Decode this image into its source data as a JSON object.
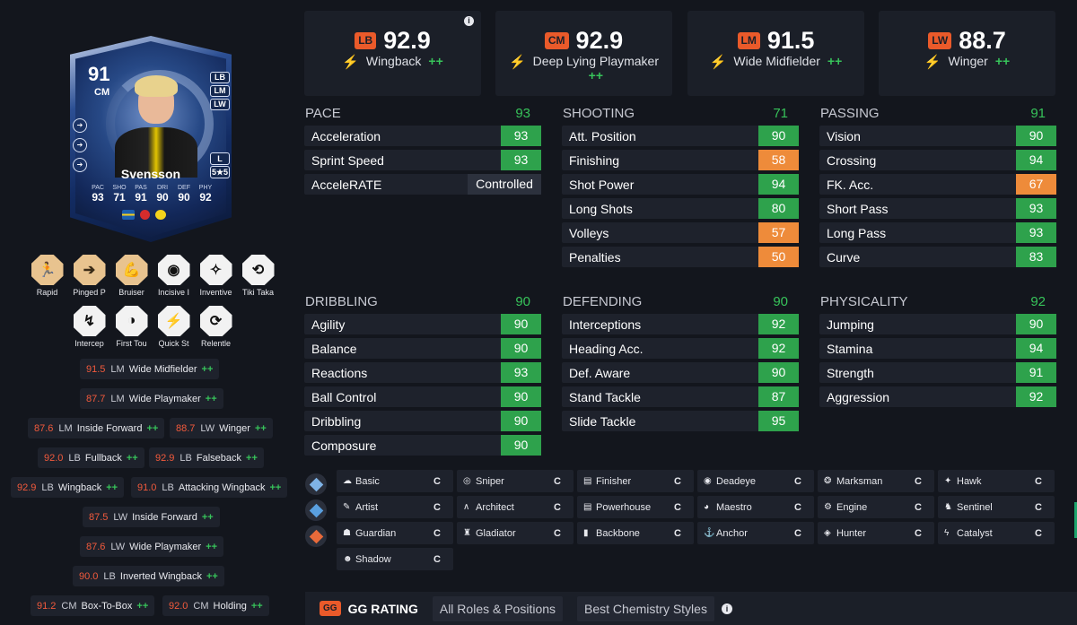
{
  "card": {
    "rating": "91",
    "position": "CM",
    "alt_positions": [
      "LB",
      "LM",
      "LW"
    ],
    "foot": "L",
    "skill_weak": "5★5",
    "name": "Svensson",
    "stats": [
      {
        "k": "PAC",
        "v": "93"
      },
      {
        "k": "SHO",
        "v": "71"
      },
      {
        "k": "PAS",
        "v": "91"
      },
      {
        "k": "DRI",
        "v": "90"
      },
      {
        "k": "DEF",
        "v": "90"
      },
      {
        "k": "PHY",
        "v": "92"
      }
    ],
    "colors": {
      "card_blue": "#274986",
      "accent": "#e8d28d"
    }
  },
  "playstyles": [
    {
      "label": "Rapid",
      "icon": "rapid-icon",
      "glyph": "🏃",
      "style": "gold"
    },
    {
      "label": "Pinged P",
      "icon": "pinged-pass-icon",
      "glyph": "➔",
      "style": "gold"
    },
    {
      "label": "Bruiser",
      "icon": "bruiser-icon",
      "glyph": "💪",
      "style": "gold"
    },
    {
      "label": "Incisive I",
      "icon": "incisive-pass-icon",
      "glyph": "◉",
      "style": "white"
    },
    {
      "label": "Inventive",
      "icon": "inventive-icon",
      "glyph": "✧",
      "style": "white"
    },
    {
      "label": "Tiki Taka",
      "icon": "tiki-taka-icon",
      "glyph": "⟲",
      "style": "white"
    },
    {
      "label": "Intercep",
      "icon": "intercept-icon",
      "glyph": "↯",
      "style": "white"
    },
    {
      "label": "First Tou",
      "icon": "first-touch-icon",
      "glyph": "◑",
      "style": "white"
    },
    {
      "label": "Quick St",
      "icon": "quick-step-icon",
      "glyph": "⚡",
      "style": "white"
    },
    {
      "label": "Relentle",
      "icon": "relentless-icon",
      "glyph": "⟳",
      "style": "white"
    }
  ],
  "role_pills": [
    {
      "rating": "91.5",
      "pos": "LM",
      "name": "Wide Midfielder",
      "plus": "++"
    },
    {
      "rating": "87.7",
      "pos": "LM",
      "name": "Wide Playmaker",
      "plus": "++"
    },
    {
      "rating": "87.6",
      "pos": "LM",
      "name": "Inside Forward",
      "plus": "++"
    },
    {
      "rating": "88.7",
      "pos": "LW",
      "name": "Winger",
      "plus": "++"
    },
    {
      "rating": "92.0",
      "pos": "LB",
      "name": "Fullback",
      "plus": "++"
    },
    {
      "rating": "92.9",
      "pos": "LB",
      "name": "Falseback",
      "plus": "++"
    },
    {
      "rating": "92.9",
      "pos": "LB",
      "name": "Wingback",
      "plus": "++"
    },
    {
      "rating": "91.0",
      "pos": "LB",
      "name": "Attacking Wingback",
      "plus": "++"
    },
    {
      "rating": "87.5",
      "pos": "LW",
      "name": "Inside Forward",
      "plus": "++"
    },
    {
      "rating": "87.6",
      "pos": "LW",
      "name": "Wide Playmaker",
      "plus": "++"
    },
    {
      "rating": "90.0",
      "pos": "LB",
      "name": "Inverted Wingback",
      "plus": "++"
    },
    {
      "rating": "91.2",
      "pos": "CM",
      "name": "Box-To-Box",
      "plus": "++"
    },
    {
      "rating": "92.0",
      "pos": "CM",
      "name": "Holding",
      "plus": "++"
    }
  ],
  "top_roles": [
    {
      "tag": "LB",
      "value": "92.9",
      "role": "Wingback",
      "plus": "++"
    },
    {
      "tag": "CM",
      "value": "92.9",
      "role": "Deep Lying Playmaker",
      "plus": "++"
    },
    {
      "tag": "LM",
      "value": "91.5",
      "role": "Wide Midfielder",
      "plus": "++"
    },
    {
      "tag": "LW",
      "value": "88.7",
      "role": "Winger",
      "plus": "++"
    }
  ],
  "top_info": "i",
  "sections": [
    {
      "title": "PACE",
      "total": "93",
      "rows": [
        {
          "n": "Acceleration",
          "v": "93",
          "c": "green"
        },
        {
          "n": "Sprint Speed",
          "v": "93",
          "c": "green"
        },
        {
          "n": "AcceleRATE",
          "v": "Controlled",
          "c": "dark"
        }
      ]
    },
    {
      "title": "SHOOTING",
      "total": "71",
      "rows": [
        {
          "n": "Att. Position",
          "v": "90",
          "c": "green"
        },
        {
          "n": "Finishing",
          "v": "58",
          "c": "orange"
        },
        {
          "n": "Shot Power",
          "v": "94",
          "c": "green"
        },
        {
          "n": "Long Shots",
          "v": "80",
          "c": "green"
        },
        {
          "n": "Volleys",
          "v": "57",
          "c": "orange"
        },
        {
          "n": "Penalties",
          "v": "50",
          "c": "orange"
        }
      ]
    },
    {
      "title": "PASSING",
      "total": "91",
      "rows": [
        {
          "n": "Vision",
          "v": "90",
          "c": "green"
        },
        {
          "n": "Crossing",
          "v": "94",
          "c": "green"
        },
        {
          "n": "FK. Acc.",
          "v": "67",
          "c": "orange"
        },
        {
          "n": "Short Pass",
          "v": "93",
          "c": "green"
        },
        {
          "n": "Long Pass",
          "v": "93",
          "c": "green"
        },
        {
          "n": "Curve",
          "v": "83",
          "c": "green"
        }
      ]
    },
    {
      "title": "DRIBBLING",
      "total": "90",
      "rows": [
        {
          "n": "Agility",
          "v": "90",
          "c": "green"
        },
        {
          "n": "Balance",
          "v": "90",
          "c": "green"
        },
        {
          "n": "Reactions",
          "v": "93",
          "c": "green"
        },
        {
          "n": "Ball Control",
          "v": "90",
          "c": "green"
        },
        {
          "n": "Dribbling",
          "v": "90",
          "c": "green"
        },
        {
          "n": "Composure",
          "v": "90",
          "c": "green"
        }
      ]
    },
    {
      "title": "DEFENDING",
      "total": "90",
      "rows": [
        {
          "n": "Interceptions",
          "v": "92",
          "c": "green"
        },
        {
          "n": "Heading Acc.",
          "v": "92",
          "c": "green"
        },
        {
          "n": "Def. Aware",
          "v": "90",
          "c": "green"
        },
        {
          "n": "Stand Tackle",
          "v": "87",
          "c": "green"
        },
        {
          "n": "Slide Tackle",
          "v": "95",
          "c": "green"
        }
      ]
    },
    {
      "title": "PHYSICALITY",
      "total": "92",
      "rows": [
        {
          "n": "Jumping",
          "v": "90",
          "c": "green"
        },
        {
          "n": "Stamina",
          "v": "94",
          "c": "green"
        },
        {
          "n": "Strength",
          "v": "91",
          "c": "green"
        },
        {
          "n": "Aggression",
          "v": "92",
          "c": "green"
        }
      ]
    }
  ],
  "chem_styles": [
    {
      "name": "Basic",
      "icon": "basic-icon",
      "glyph": "☁",
      "grade": "C"
    },
    {
      "name": "Sniper",
      "icon": "sniper-icon",
      "glyph": "◎",
      "grade": "C"
    },
    {
      "name": "Finisher",
      "icon": "finisher-icon",
      "glyph": "▤",
      "grade": "C"
    },
    {
      "name": "Deadeye",
      "icon": "deadeye-icon",
      "glyph": "◉",
      "grade": "C"
    },
    {
      "name": "Marksman",
      "icon": "marksman-icon",
      "glyph": "❂",
      "grade": "C"
    },
    {
      "name": "Hawk",
      "icon": "hawk-icon",
      "glyph": "✦",
      "grade": "C"
    },
    {
      "name": "Artist",
      "icon": "artist-icon",
      "glyph": "✎",
      "grade": "C"
    },
    {
      "name": "Architect",
      "icon": "architect-icon",
      "glyph": "∧",
      "grade": "C"
    },
    {
      "name": "Powerhouse",
      "icon": "powerhouse-icon",
      "glyph": "▤",
      "grade": "C"
    },
    {
      "name": "Maestro",
      "icon": "maestro-icon",
      "glyph": "◕",
      "grade": "C"
    },
    {
      "name": "Engine",
      "icon": "engine-icon",
      "glyph": "⚙",
      "grade": "C"
    },
    {
      "name": "Sentinel",
      "icon": "sentinel-icon",
      "glyph": "♞",
      "grade": "C"
    },
    {
      "name": "Guardian",
      "icon": "guardian-icon",
      "glyph": "☗",
      "grade": "C"
    },
    {
      "name": "Gladiator",
      "icon": "gladiator-icon",
      "glyph": "♜",
      "grade": "C"
    },
    {
      "name": "Backbone",
      "icon": "backbone-icon",
      "glyph": "▮",
      "grade": "C"
    },
    {
      "name": "Anchor",
      "icon": "anchor-icon",
      "glyph": "⚓",
      "grade": "C"
    },
    {
      "name": "Hunter",
      "icon": "hunter-icon",
      "glyph": "◈",
      "grade": "C"
    },
    {
      "name": "Catalyst",
      "icon": "catalyst-icon",
      "glyph": "ϟ",
      "grade": "C"
    },
    {
      "name": "Shadow",
      "icon": "shadow-icon",
      "glyph": "☻",
      "grade": "C"
    }
  ],
  "bottom": {
    "gg_tag": "GG",
    "gg_label": "GG RATING",
    "tabs": [
      "All Roles & Positions",
      "Best Chemistry Styles"
    ],
    "info": "i"
  },
  "colors": {
    "green": "#2ea24c",
    "orange": "#ee8b3a",
    "accent": "#ea5a2a",
    "bg": "#13161d",
    "panel": "#1e222c"
  }
}
